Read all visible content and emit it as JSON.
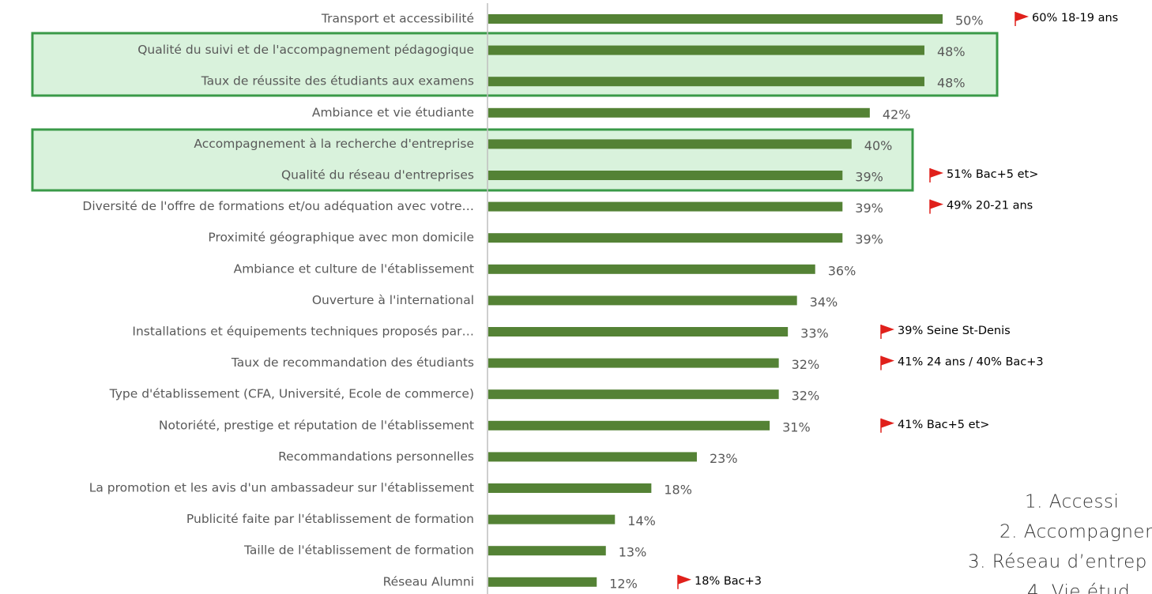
{
  "chart_data": {
    "type": "bar",
    "orientation": "horizontal",
    "color": "#548235",
    "categories": [
      "Transport et accessibilité",
      "Qualité du suivi et de l'accompagnement pédagogique",
      "Taux de réussite des étudiants aux examens",
      "Ambiance et vie étudiante",
      "Accompagnement à la recherche d'entreprise",
      "Qualité du réseau d'entreprises",
      "Diversité de l'offre de formations et/ou adéquation avec votre…",
      "Proximité géographique avec mon domicile",
      "Ambiance et culture de l'établissement",
      "Ouverture à l'international",
      "Installations et équipements techniques proposés par…",
      "Taux de recommandation des étudiants",
      "Type d'établissement (CFA, Université, Ecole de commerce)",
      "Notoriété, prestige et réputation de l'établissement",
      "Recommandations personnelles",
      "La promotion et les avis d'un ambassadeur sur l'établissement",
      "Publicité faite par l'établissement de formation",
      "Taille de l'établissement de formation",
      "Réseau Alumni"
    ],
    "values": [
      50,
      48,
      48,
      42,
      40,
      39,
      39,
      39,
      36,
      34,
      33,
      32,
      32,
      31,
      23,
      18,
      14,
      13,
      12
    ],
    "value_labels": [
      "50%",
      "48%",
      "48%",
      "42%",
      "40%",
      "39%",
      "39%",
      "39%",
      "36%",
      "34%",
      "33%",
      "32%",
      "32%",
      "31%",
      "23%",
      "18%",
      "14%",
      "13%",
      "12%"
    ],
    "annotations": [
      "60% 18-19 ans",
      null,
      null,
      null,
      null,
      "51% Bac+5 et>",
      "49% 20-21 ans",
      null,
      null,
      null,
      "39% Seine St-Denis",
      "41% 24 ans / 40% Bac+3",
      null,
      "41% Bac+5 et>",
      null,
      null,
      null,
      null,
      "18% Bac+3"
    ],
    "annotation_color": "#e0201b"
  },
  "side_list": [
    "1.  Accessi",
    "2.  Accompagner",
    "3.  Réseau d’entrep",
    "4.  Vie étud"
  ]
}
